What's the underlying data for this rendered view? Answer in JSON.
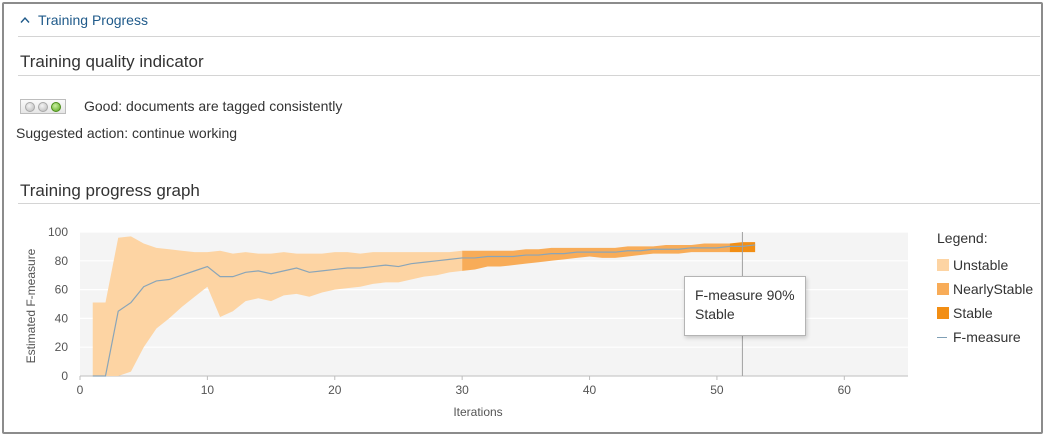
{
  "section": {
    "title": "Training Progress"
  },
  "quality": {
    "heading": "Training quality indicator",
    "status_text": "Good: documents are tagged consistently",
    "suggested_action": "Suggested action: continue working",
    "lights": [
      "off",
      "off",
      "on"
    ]
  },
  "progress": {
    "heading": "Training progress graph"
  },
  "colors": {
    "accent": "#1f5a8a",
    "unstable": "#fdd4a3",
    "nearly_stable": "#f8ac58",
    "stable": "#f28e14",
    "fmeasure_line": "#8aa5b8",
    "plot_bg": "#f4f4f4"
  },
  "chart_data": {
    "type": "area",
    "xlabel": "Iterations",
    "ylabel": "Estimated F-measure",
    "xlim": [
      0,
      65
    ],
    "ylim": [
      0,
      100
    ],
    "xticks": [
      0,
      10,
      20,
      30,
      40,
      50,
      60
    ],
    "yticks": [
      0,
      20,
      40,
      60,
      80,
      100
    ],
    "grid": true,
    "legend_position": "right",
    "legend_title": "Legend:",
    "legend": [
      "Unstable",
      "NearlyStable",
      "Stable",
      "F-measure"
    ],
    "x": [
      1,
      2,
      3,
      4,
      5,
      6,
      7,
      8,
      9,
      10,
      11,
      12,
      13,
      14,
      15,
      16,
      17,
      18,
      19,
      20,
      21,
      22,
      23,
      24,
      25,
      26,
      27,
      28,
      29,
      30,
      31,
      32,
      33,
      34,
      35,
      36,
      37,
      38,
      39,
      40,
      41,
      42,
      43,
      44,
      45,
      46,
      47,
      48,
      49,
      50,
      51,
      52,
      53
    ],
    "f_measure": [
      0,
      0,
      45,
      51,
      62,
      66,
      67,
      70,
      73,
      76,
      69,
      69,
      72,
      73,
      71,
      73,
      75,
      72,
      73,
      74,
      75,
      75,
      76,
      77,
      76,
      78,
      79,
      80,
      81,
      82,
      82,
      83,
      83,
      83,
      84,
      84,
      85,
      85,
      86,
      86,
      86,
      86,
      87,
      87,
      88,
      88,
      88,
      89,
      89,
      89,
      90,
      90,
      91
    ],
    "upper": [
      51,
      51,
      96,
      97,
      92,
      89,
      88,
      87,
      86,
      86,
      87,
      85,
      86,
      85,
      85,
      86,
      85,
      85,
      85,
      86,
      86,
      85,
      86,
      86,
      86,
      86,
      86,
      86,
      86,
      87,
      87,
      87,
      87,
      87,
      88,
      88,
      89,
      89,
      89,
      89,
      89,
      89,
      90,
      90,
      90,
      91,
      91,
      91,
      92,
      92,
      92,
      93,
      93
    ],
    "lower": [
      0,
      0,
      0,
      3,
      20,
      33,
      40,
      48,
      55,
      62,
      41,
      45,
      52,
      54,
      52,
      56,
      57,
      55,
      58,
      60,
      61,
      62,
      64,
      65,
      65,
      67,
      69,
      70,
      72,
      73,
      74,
      76,
      76,
      77,
      78,
      79,
      80,
      81,
      82,
      83,
      82,
      82,
      83,
      84,
      85,
      85,
      85,
      86,
      86,
      86,
      86,
      86,
      86
    ],
    "segments": [
      {
        "name": "Unstable",
        "from": 1,
        "to": 30
      },
      {
        "name": "NearlyStable",
        "from": 30,
        "to": 51
      },
      {
        "name": "Stable",
        "from": 51,
        "to": 53
      }
    ],
    "cursor_x": 52,
    "tooltip": {
      "line1": "F-measure 90%",
      "line2": "Stable"
    }
  }
}
